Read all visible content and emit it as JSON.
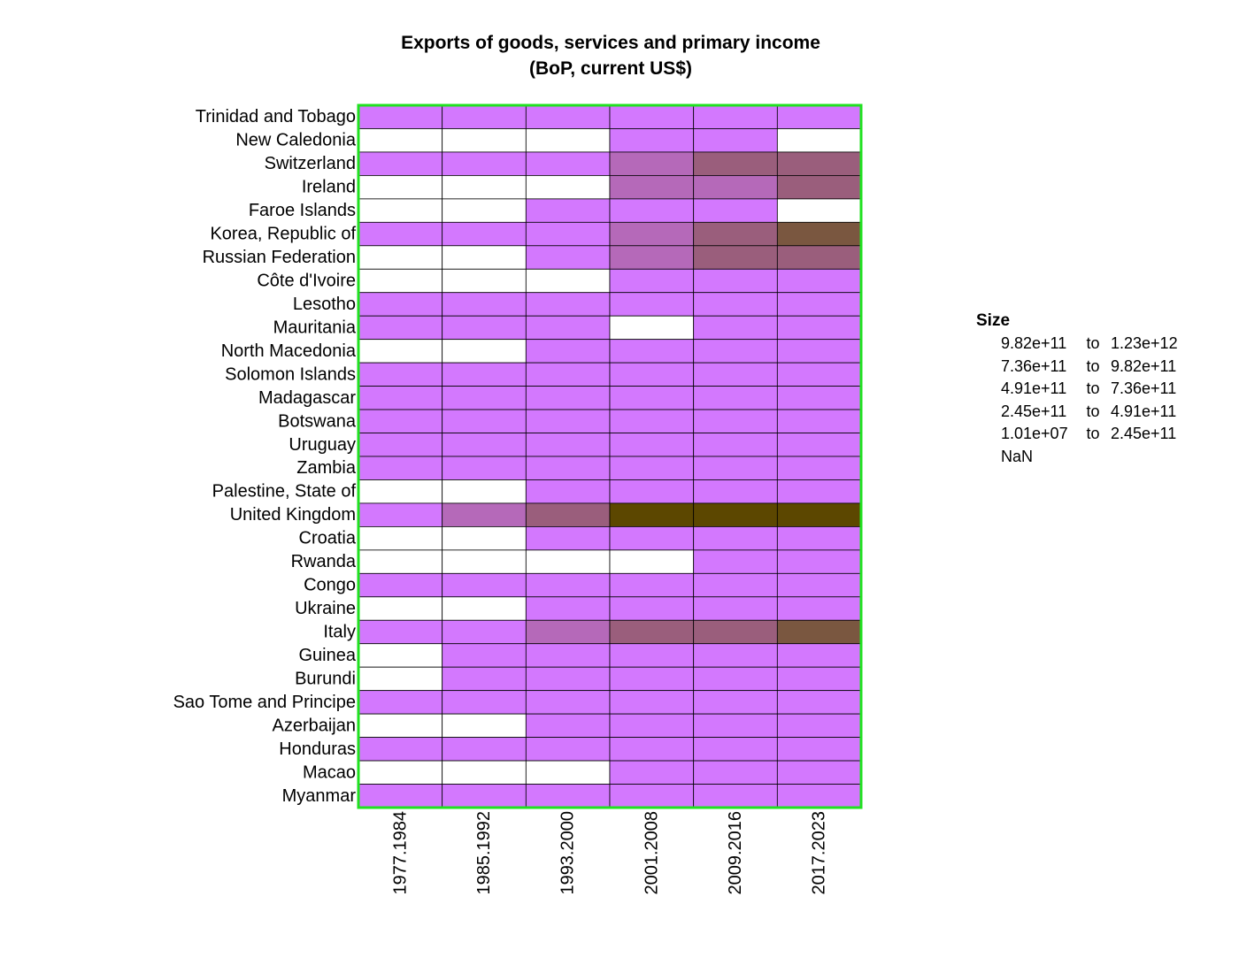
{
  "chart_data": {
    "type": "heatmap",
    "title": [
      "Exports of goods, services and primary income",
      "(BoP, current US$)"
    ],
    "xlabel": "",
    "ylabel": "",
    "columns": [
      "1977.1984",
      "1985.1992",
      "1993.2000",
      "2001.2008",
      "2009.2016",
      "2017.2023"
    ],
    "rows": [
      "Trinidad and Tobago",
      "New Caledonia",
      "Switzerland",
      "Ireland",
      "Faroe Islands",
      "Korea, Republic of",
      "Russian Federation",
      "Côte d'Ivoire",
      "Lesotho",
      "Mauritania",
      "North Macedonia",
      "Solomon Islands",
      "Madagascar",
      "Botswana",
      "Uruguay",
      "Zambia",
      "Palestine, State of",
      "United Kingdom",
      "Croatia",
      "Rwanda",
      "Congo",
      "Ukraine",
      "Italy",
      "Guinea",
      "Burundi",
      "Sao Tome and Principe",
      "Azerbaijan",
      "Honduras",
      "Macao",
      "Myanmar"
    ],
    "bin_codes": [
      [
        1,
        1,
        1,
        1,
        1,
        1
      ],
      [
        0,
        0,
        0,
        1,
        1,
        0
      ],
      [
        1,
        1,
        1,
        2,
        3,
        3
      ],
      [
        0,
        0,
        0,
        2,
        2,
        3
      ],
      [
        0,
        0,
        1,
        1,
        1,
        0
      ],
      [
        1,
        1,
        1,
        2,
        3,
        4
      ],
      [
        0,
        0,
        1,
        2,
        3,
        3
      ],
      [
        0,
        0,
        0,
        1,
        1,
        1
      ],
      [
        1,
        1,
        1,
        1,
        1,
        1
      ],
      [
        1,
        1,
        1,
        0,
        1,
        1
      ],
      [
        0,
        0,
        1,
        1,
        1,
        1
      ],
      [
        1,
        1,
        1,
        1,
        1,
        1
      ],
      [
        1,
        1,
        1,
        1,
        1,
        1
      ],
      [
        1,
        1,
        1,
        1,
        1,
        1
      ],
      [
        1,
        1,
        1,
        1,
        1,
        1
      ],
      [
        1,
        1,
        1,
        1,
        1,
        1
      ],
      [
        0,
        0,
        1,
        1,
        1,
        1
      ],
      [
        1,
        2,
        3,
        5,
        5,
        5
      ],
      [
        0,
        0,
        1,
        1,
        1,
        1
      ],
      [
        0,
        0,
        0,
        0,
        1,
        1
      ],
      [
        1,
        1,
        1,
        1,
        1,
        1
      ],
      [
        0,
        0,
        1,
        1,
        1,
        1
      ],
      [
        1,
        1,
        2,
        3,
        3,
        4
      ],
      [
        0,
        1,
        1,
        1,
        1,
        1
      ],
      [
        0,
        1,
        1,
        1,
        1,
        1
      ],
      [
        1,
        1,
        1,
        1,
        1,
        1
      ],
      [
        0,
        0,
        1,
        1,
        1,
        1
      ],
      [
        1,
        1,
        1,
        1,
        1,
        1
      ],
      [
        0,
        0,
        0,
        1,
        1,
        1
      ],
      [
        1,
        1,
        1,
        1,
        1,
        1
      ]
    ],
    "bins": [
      {
        "code": 0,
        "label": "NaN",
        "color": "#ffffff"
      },
      {
        "code": 1,
        "lo": "1.01e+07",
        "hi": "2.45e+11",
        "color": "#d378fe"
      },
      {
        "code": 2,
        "lo": "2.45e+11",
        "hi": "4.91e+11",
        "color": "#b569b9"
      },
      {
        "code": 3,
        "lo": "4.91e+11",
        "hi": "7.36e+11",
        "color": "#9a5e7c"
      },
      {
        "code": 4,
        "lo": "7.36e+11",
        "hi": "9.82e+11",
        "color": "#7a5740"
      },
      {
        "code": 5,
        "lo": "9.82e+11",
        "hi": "1.23e+12",
        "color": "#5c4700"
      }
    ],
    "legend": {
      "title": "Size",
      "placement": "right",
      "connector": "to",
      "order": [
        5,
        4,
        3,
        2,
        1,
        0
      ]
    },
    "frame_color": "#1fe11f",
    "grid": false
  }
}
